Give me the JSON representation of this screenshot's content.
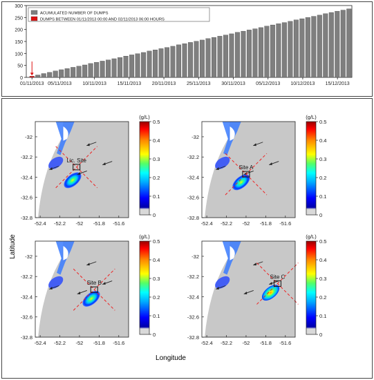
{
  "chart_data": [
    {
      "type": "bar",
      "title": "",
      "xlabel": "",
      "ylabel": "",
      "ylim": [
        0,
        300
      ],
      "y_ticks": [
        0,
        50,
        100,
        150,
        200,
        250,
        300
      ],
      "x_tick_labels": [
        "01/11/2013",
        "05/11/2013",
        "10/11/2013",
        "15/11/2013",
        "20/11/2013",
        "25/11/2013",
        "30/11/2013",
        "05/12/2013",
        "10/12/2013",
        "15/12/2013"
      ],
      "legend": {
        "placement": "top-left",
        "entries": [
          {
            "label": "ACUMULATED NUMBER OF DUMPS",
            "color": "#7f7f7f"
          },
          {
            "label": "DUMPS BETWEEN 01/11/2013 00:00 AND 02/11/2013 06:00 HOURS",
            "color": "#dd1111"
          }
        ]
      },
      "highlight_series": {
        "name": "DUMPS BETWEEN 01/11/2013 00:00 AND 02/11/2013 06:00 HOURS",
        "index": 0,
        "value": 5,
        "color": "#dd1111"
      },
      "series": [
        {
          "name": "ACUMULATED NUMBER OF DUMPS",
          "color": "#7f7f7f",
          "values": [
            5,
            10,
            16,
            21,
            27,
            32,
            37,
            42,
            47,
            52,
            58,
            63,
            68,
            73,
            78,
            83,
            89,
            94,
            99,
            104,
            110,
            115,
            120,
            125,
            130,
            136,
            141,
            146,
            151,
            156,
            162,
            167,
            172,
            177,
            182,
            188,
            193,
            198,
            203,
            208,
            214,
            219,
            224,
            229,
            234,
            240,
            245,
            250,
            255,
            260,
            266,
            271,
            276,
            281,
            286
          ]
        }
      ]
    },
    {
      "type": "heatmap",
      "xlabel": "Longitude",
      "ylabel": "Latitude",
      "xlim": [
        -52.45,
        -51.5
      ],
      "ylim": [
        -32.8,
        -31.85
      ],
      "x_ticks": [
        -52.4,
        -52.2,
        -52,
        -51.8,
        -51.6
      ],
      "y_ticks": [
        -32,
        -32.2,
        -32.4,
        -32.6,
        -32.8
      ],
      "colorbar": {
        "unit": "(g/L)",
        "range": [
          0,
          0.5
        ],
        "ticks": [
          0,
          0.1,
          0.2,
          0.3,
          0.4,
          0.5
        ]
      },
      "panels": [
        {
          "site_label": "Lic. Site",
          "site": [
            -52.03,
            -32.3
          ],
          "plume_center": [
            -52.07,
            -32.43
          ],
          "plume_peak": 0.26
        },
        {
          "site_label": "Site A",
          "site": [
            -52.0,
            -32.37
          ],
          "plume_center": [
            -52.05,
            -32.45
          ],
          "plume_peak": 0.25
        },
        {
          "site_label": "Site B",
          "site": [
            -51.85,
            -32.33
          ],
          "plume_center": [
            -51.88,
            -32.42
          ],
          "plume_peak": 0.22
        },
        {
          "site_label": "Site C",
          "site": [
            -51.68,
            -32.27
          ],
          "plume_center": [
            -51.75,
            -32.36
          ],
          "plume_peak": 0.3
        }
      ]
    }
  ]
}
